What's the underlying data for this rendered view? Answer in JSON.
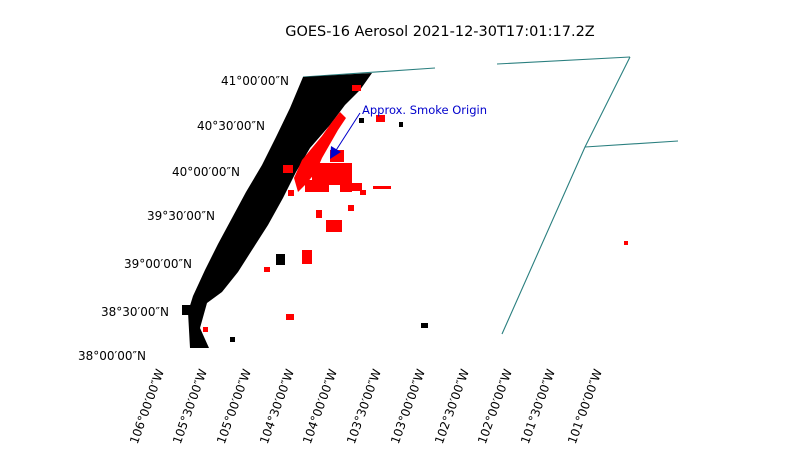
{
  "title": "GOES-16 Aerosol 2021-12-30T17:01:17.2Z",
  "annotation": {
    "text": "Approx. Smoke Origin",
    "color": "#0000cc"
  },
  "lat_labels": [
    "41°00′00″N",
    "40°30′00″N",
    "40°00′00″N",
    "39°30′00″N",
    "39°00′00″N",
    "38°30′00″N",
    "38°00′00″N"
  ],
  "lon_labels": [
    "106°00′00″W",
    "105°30′00″W",
    "105°00′00″W",
    "104°30′00″W",
    "104°00′00″W",
    "103°30′00″W",
    "103°00′00″W",
    "102°30′00″W",
    "102°00′00″W",
    "101°30′00″W",
    "101°00′00″W"
  ],
  "colors": {
    "boundary": "#2a7f7f",
    "no_data": "#000000",
    "smoke": "#ff0000",
    "arrow": "#0000cc"
  }
}
